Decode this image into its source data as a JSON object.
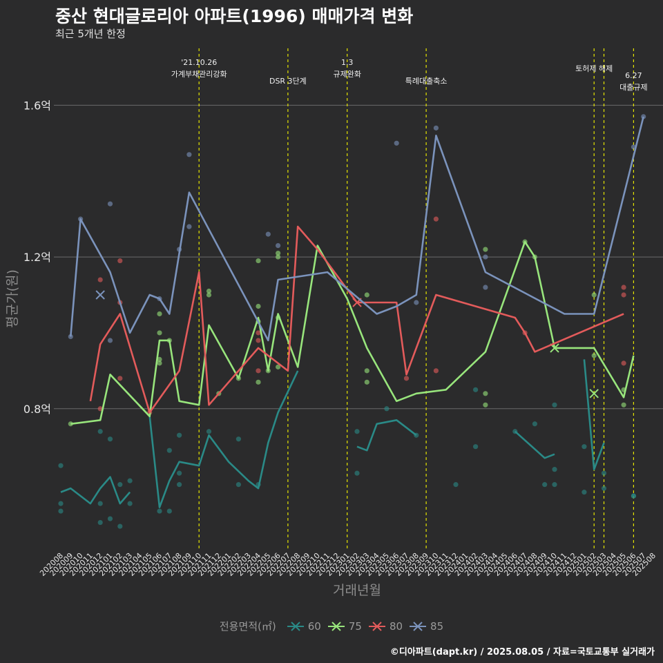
{
  "title": "중산 현대글로리아 아파트(1996) 매매가격 변화",
  "subtitle": "최근 5개년 한정",
  "caption": "©디아파트(dapt.kr) / 2025.08.05 / 자료=국토교통부 실거래가",
  "legend": {
    "title": "전용면적(㎡)",
    "items": [
      {
        "label": "60",
        "color": "#2a8a87"
      },
      {
        "label": "75",
        "color": "#98e57c"
      },
      {
        "label": "80",
        "color": "#e35b5b"
      },
      {
        "label": "85",
        "color": "#7b93bc"
      }
    ]
  },
  "chart_data": {
    "type": "line",
    "xlabel": "거래년월",
    "ylabel": "평균가(원)",
    "ylim": [
      0.43,
      1.75
    ],
    "yticks": [
      {
        "v": 0.8,
        "label": "0.8억"
      },
      {
        "v": 1.2,
        "label": "1.2억"
      },
      {
        "v": 1.6,
        "label": "1.6억"
      }
    ],
    "categories": [
      "202008",
      "202009",
      "202010",
      "202011",
      "202012",
      "202101",
      "202102",
      "202103",
      "202104",
      "202105",
      "202106",
      "202107",
      "202108",
      "202109",
      "202110",
      "202111",
      "202112",
      "202201",
      "202202",
      "202203",
      "202204",
      "202205",
      "202206",
      "202207",
      "202208",
      "202209",
      "202210",
      "202211",
      "202212",
      "202301",
      "202302",
      "202303",
      "202304",
      "202305",
      "202306",
      "202307",
      "202308",
      "202309",
      "202310",
      "202311",
      "202312",
      "202401",
      "202402",
      "202403",
      "202404",
      "202405",
      "202406",
      "202407",
      "202408",
      "202409",
      "202410",
      "202411",
      "202412",
      "202501",
      "202502",
      "202503",
      "202504",
      "202505",
      "202506",
      "202507",
      "202508"
    ],
    "annotations": [
      {
        "x": "202110",
        "label": "'21.10.26\n가계부채관리강화"
      },
      {
        "x": "202207",
        "label": "DSR 3단계"
      },
      {
        "x": "202301",
        "label": "1.3\n규제완화"
      },
      {
        "x": "202309",
        "label": "특례대출축소"
      },
      {
        "x": "202502",
        "label": "토허제 해제"
      },
      {
        "x": "202503",
        "label": ""
      },
      {
        "x": "202506",
        "label": "6.27\n대출규제"
      }
    ],
    "series": [
      {
        "name": "60",
        "color": "#2a8a87",
        "line": [
          [
            [
              "202008",
              0.58
            ],
            [
              "202009",
              0.59
            ],
            [
              "202011",
              0.55
            ],
            [
              "202012",
              0.59
            ],
            [
              "202101",
              0.62
            ],
            [
              "202102",
              0.55
            ],
            [
              "202103",
              0.58
            ]
          ],
          [
            [
              "202105",
              0.78
            ],
            [
              "202106",
              0.54
            ],
            [
              "202107",
              0.61
            ],
            [
              "202108",
              0.66
            ],
            [
              "202110",
              0.65
            ],
            [
              "202111",
              0.73
            ],
            [
              "202201",
              0.66
            ],
            [
              "202203",
              0.61
            ],
            [
              "202204",
              0.59
            ],
            [
              "202205",
              0.71
            ],
            [
              "202206",
              0.79
            ],
            [
              "202208",
              0.9
            ]
          ],
          [
            [
              "202302",
              0.7
            ],
            [
              "202303",
              0.69
            ],
            [
              "202304",
              0.76
            ],
            [
              "202306",
              0.77
            ],
            [
              "202307",
              0.75
            ],
            [
              "202308",
              0.73
            ]
          ],
          [
            [
              "202406",
              0.74
            ],
            [
              "202409",
              0.67
            ],
            [
              "202410",
              0.68
            ]
          ],
          [
            [
              "202501",
              0.93
            ],
            [
              "202502",
              0.64
            ],
            [
              "202503",
              0.71
            ]
          ]
        ],
        "points": [
          [
            "202008",
            0.65
          ],
          [
            "202008",
            0.55
          ],
          [
            "202008",
            0.53
          ],
          [
            "202012",
            0.55
          ],
          [
            "202012",
            0.5
          ],
          [
            "202012",
            0.74
          ],
          [
            "202101",
            0.72
          ],
          [
            "202101",
            0.51
          ],
          [
            "202102",
            0.49
          ],
          [
            "202102",
            0.6
          ],
          [
            "202103",
            0.61
          ],
          [
            "202103",
            0.55
          ],
          [
            "202106",
            0.53
          ],
          [
            "202107",
            0.69
          ],
          [
            "202107",
            0.53
          ],
          [
            "202108",
            0.73
          ],
          [
            "202108",
            0.63
          ],
          [
            "202108",
            0.6
          ],
          [
            "202111",
            0.74
          ],
          [
            "202202",
            0.72
          ],
          [
            "202202",
            0.6
          ],
          [
            "202204",
            0.6
          ],
          [
            "202302",
            0.63
          ],
          [
            "202302",
            0.74
          ],
          [
            "202305",
            0.8
          ],
          [
            "202308",
            0.73
          ],
          [
            "202312",
            0.6
          ],
          [
            "202402",
            0.85
          ],
          [
            "202402",
            0.7
          ],
          [
            "202406",
            0.74
          ],
          [
            "202408",
            0.76
          ],
          [
            "202409",
            0.6
          ],
          [
            "202410",
            0.6
          ],
          [
            "202410",
            0.64
          ],
          [
            "202410",
            0.81
          ],
          [
            "202501",
            0.7
          ],
          [
            "202501",
            0.58
          ],
          [
            "202503",
            0.63
          ],
          [
            "202503",
            0.59
          ],
          [
            "202506",
            0.57
          ],
          [
            "202506",
            0.57
          ]
        ],
        "markers": []
      },
      {
        "name": "75",
        "color": "#98e57c",
        "line": [
          [
            [
              "202009",
              0.76
            ],
            [
              "202012",
              0.77
            ],
            [
              "202101",
              0.89
            ],
            [
              "202105",
              0.78
            ],
            [
              "202106",
              0.98
            ],
            [
              "202107",
              0.98
            ],
            [
              "202108",
              0.82
            ],
            [
              "202110",
              0.81
            ],
            [
              "202111",
              1.02
            ],
            [
              "202202",
              0.88
            ],
            [
              "202204",
              1.04
            ],
            [
              "202205",
              0.9
            ],
            [
              "202206",
              1.05
            ],
            [
              "202208",
              0.91
            ],
            [
              "202210",
              1.23
            ],
            [
              "202301",
              1.09
            ],
            [
              "202303",
              0.96
            ],
            [
              "202306",
              0.82
            ],
            [
              "202308",
              0.84
            ],
            [
              "202311",
              0.85
            ],
            [
              "202403",
              0.95
            ],
            [
              "202407",
              1.24
            ],
            [
              "202408",
              1.2
            ],
            [
              "202410",
              0.96
            ],
            [
              "202502",
              0.96
            ],
            [
              "202505",
              0.83
            ],
            [
              "202506",
              0.94
            ]
          ]
        ],
        "points": [
          [
            "202009",
            0.76
          ],
          [
            "202106",
            1.05
          ],
          [
            "202106",
            1.0
          ],
          [
            "202106",
            0.93
          ],
          [
            "202106",
            0.92
          ],
          [
            "202107",
            0.98
          ],
          [
            "202111",
            1.1
          ],
          [
            "202111",
            1.11
          ],
          [
            "202112",
            0.84
          ],
          [
            "202202",
            0.88
          ],
          [
            "202204",
            1.19
          ],
          [
            "202204",
            1.07
          ],
          [
            "202204",
            1.03
          ],
          [
            "202204",
            0.87
          ],
          [
            "202205",
            0.9
          ],
          [
            "202206",
            1.2
          ],
          [
            "202206",
            1.21
          ],
          [
            "202206",
            1.04
          ],
          [
            "202206",
            0.91
          ],
          [
            "202303",
            1.1
          ],
          [
            "202303",
            0.9
          ],
          [
            "202303",
            0.87
          ],
          [
            "202403",
            1.22
          ],
          [
            "202403",
            0.84
          ],
          [
            "202403",
            0.81
          ],
          [
            "202407",
            1.24
          ],
          [
            "202408",
            1.2
          ],
          [
            "202502",
            1.1
          ],
          [
            "202502",
            0.94
          ],
          [
            "202505",
            0.85
          ],
          [
            "202505",
            0.81
          ]
        ],
        "markers": [
          [
            "202410",
            0.96
          ],
          [
            "202502",
            0.84
          ]
        ]
      },
      {
        "name": "80",
        "color": "#e35b5b",
        "line": [
          [
            [
              "202011",
              0.82
            ],
            [
              "202012",
              0.97
            ],
            [
              "202102",
              1.05
            ],
            [
              "202105",
              0.79
            ],
            [
              "202108",
              0.9
            ],
            [
              "202110",
              1.16
            ],
            [
              "202111",
              0.81
            ],
            [
              "202204",
              0.96
            ],
            [
              "202207",
              0.9
            ],
            [
              "202208",
              1.28
            ],
            [
              "202210",
              1.22
            ],
            [
              "202302",
              1.08
            ],
            [
              "202306",
              1.08
            ],
            [
              "202307",
              0.89
            ],
            [
              "202310",
              1.1
            ],
            [
              "202406",
              1.04
            ],
            [
              "202407",
              1.0
            ],
            [
              "202408",
              0.95
            ],
            [
              "202505",
              1.05
            ]
          ]
        ],
        "points": [
          [
            "202012",
            1.14
          ],
          [
            "202012",
            0.8
          ],
          [
            "202102",
            1.19
          ],
          [
            "202102",
            1.08
          ],
          [
            "202102",
            0.88
          ],
          [
            "202105",
            0.79
          ],
          [
            "202204",
            1.0
          ],
          [
            "202204",
            0.98
          ],
          [
            "202204",
            0.9
          ],
          [
            "202307",
            0.88
          ],
          [
            "202310",
            1.3
          ],
          [
            "202310",
            0.9
          ],
          [
            "202407",
            1.0
          ],
          [
            "202505",
            1.12
          ],
          [
            "202505",
            1.1
          ],
          [
            "202505",
            0.92
          ]
        ],
        "markers": [
          [
            "202302",
            1.08
          ]
        ]
      },
      {
        "name": "85",
        "color": "#7b93bc",
        "line": [
          [
            [
              "202009",
              0.99
            ],
            [
              "202010",
              1.3
            ],
            [
              "202101",
              1.16
            ],
            [
              "202103",
              1.0
            ],
            [
              "202105",
              1.1
            ],
            [
              "202106",
              1.09
            ],
            [
              "202107",
              1.05
            ],
            [
              "202109",
              1.37
            ],
            [
              "202205",
              0.98
            ],
            [
              "202206",
              1.14
            ],
            [
              "202211",
              1.16
            ],
            [
              "202304",
              1.05
            ],
            [
              "202306",
              1.07
            ],
            [
              "202308",
              1.1
            ],
            [
              "202310",
              1.52
            ],
            [
              "202403",
              1.16
            ],
            [
              "202411",
              1.05
            ],
            [
              "202502",
              1.05
            ],
            [
              "202507",
              1.57
            ]
          ]
        ],
        "points": [
          [
            "202009",
            0.99
          ],
          [
            "202010",
            1.3
          ],
          [
            "202101",
            1.34
          ],
          [
            "202101",
            0.98
          ],
          [
            "202106",
            1.09
          ],
          [
            "202108",
            1.22
          ],
          [
            "202109",
            1.47
          ],
          [
            "202109",
            1.28
          ],
          [
            "202205",
            1.26
          ],
          [
            "202206",
            1.23
          ],
          [
            "202306",
            1.5
          ],
          [
            "202308",
            1.08
          ],
          [
            "202310",
            1.54
          ],
          [
            "202403",
            1.2
          ],
          [
            "202403",
            1.12
          ],
          [
            "202506",
            1.49
          ],
          [
            "202507",
            1.57
          ]
        ],
        "markers": [
          [
            "202012",
            1.1
          ]
        ]
      }
    ]
  }
}
